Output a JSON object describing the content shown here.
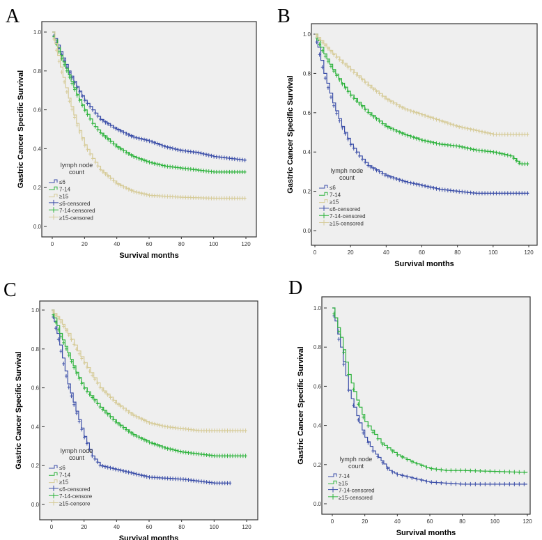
{
  "colors": {
    "blue": "#3b4ea8",
    "green": "#2db33c",
    "tan": "#d6cb98",
    "plot_bg": "#efefef"
  },
  "chart_data": [
    {
      "type": "line",
      "panel_label": "A",
      "xlabel": "Survival months",
      "ylabel": "Gastric Cancer Specific Survival",
      "xlim": [
        0,
        120
      ],
      "ylim": [
        0,
        1
      ],
      "xticks": [
        "0",
        "20",
        "40",
        "60",
        "80",
        "100",
        "120"
      ],
      "yticks": [
        "0.0",
        "0.2",
        "0.4",
        "0.6",
        "0.8",
        "1.0"
      ],
      "legend_title": [
        "lymph node",
        "count"
      ],
      "legend": [
        "≤6",
        "7-14",
        "≥15",
        "≤6-censored",
        "7-14-censored",
        "≥15-censored"
      ],
      "legend_colors": [
        "blue",
        "green",
        "tan",
        "blue",
        "green",
        "tan"
      ],
      "legend_placement": "bottom-left",
      "series": [
        {
          "name": "≤6",
          "color": "blue",
          "x": [
            0,
            5,
            10,
            15,
            20,
            25,
            30,
            40,
            50,
            60,
            70,
            80,
            90,
            100,
            110,
            120
          ],
          "y": [
            1,
            0.9,
            0.8,
            0.72,
            0.65,
            0.6,
            0.55,
            0.5,
            0.46,
            0.44,
            0.41,
            0.39,
            0.38,
            0.36,
            0.35,
            0.34
          ]
        },
        {
          "name": "7-14",
          "color": "green",
          "x": [
            0,
            5,
            10,
            15,
            20,
            25,
            30,
            40,
            50,
            60,
            70,
            80,
            90,
            100,
            120
          ],
          "y": [
            1,
            0.88,
            0.78,
            0.68,
            0.6,
            0.53,
            0.48,
            0.41,
            0.36,
            0.33,
            0.31,
            0.3,
            0.29,
            0.28,
            0.28
          ]
        },
        {
          "name": "≥15",
          "color": "tan",
          "x": [
            0,
            5,
            10,
            15,
            20,
            25,
            30,
            40,
            50,
            60,
            70,
            80,
            100,
            120
          ],
          "y": [
            1,
            0.82,
            0.66,
            0.53,
            0.42,
            0.35,
            0.29,
            0.22,
            0.18,
            0.16,
            0.155,
            0.15,
            0.145,
            0.145
          ]
        }
      ]
    },
    {
      "type": "line",
      "panel_label": "B",
      "xlabel": "Survival months",
      "ylabel": "Gastric Cancer Specific Survival",
      "xlim": [
        0,
        120
      ],
      "ylim": [
        0,
        1
      ],
      "xticks": [
        "0",
        "20",
        "40",
        "60",
        "80",
        "100",
        "120"
      ],
      "yticks": [
        "0.0",
        "0.2",
        "0.4",
        "0.6",
        "0.8",
        "1.0"
      ],
      "legend_title": [
        "lymph node",
        "count"
      ],
      "legend": [
        "≤6",
        "7-14",
        "≥15",
        "≤6-censored",
        "7-14-censored",
        "≥15-censored"
      ],
      "legend_colors": [
        "blue",
        "green",
        "tan",
        "blue",
        "green",
        "tan"
      ],
      "legend_placement": "bottom-left",
      "series": [
        {
          "name": "≤6",
          "color": "blue",
          "x": [
            0,
            5,
            10,
            15,
            20,
            25,
            30,
            40,
            50,
            60,
            70,
            80,
            90,
            120
          ],
          "y": [
            1,
            0.8,
            0.65,
            0.53,
            0.44,
            0.38,
            0.33,
            0.28,
            0.25,
            0.23,
            0.21,
            0.2,
            0.19,
            0.19
          ]
        },
        {
          "name": "7-14",
          "color": "green",
          "x": [
            0,
            5,
            10,
            15,
            20,
            30,
            40,
            50,
            60,
            70,
            80,
            90,
            100,
            110,
            115,
            120
          ],
          "y": [
            1,
            0.9,
            0.82,
            0.75,
            0.69,
            0.6,
            0.53,
            0.49,
            0.46,
            0.44,
            0.43,
            0.41,
            0.4,
            0.38,
            0.34,
            0.34
          ]
        },
        {
          "name": "≥15",
          "color": "tan",
          "x": [
            0,
            5,
            10,
            20,
            30,
            40,
            50,
            60,
            70,
            80,
            90,
            100,
            120
          ],
          "y": [
            1,
            0.95,
            0.9,
            0.82,
            0.74,
            0.67,
            0.62,
            0.59,
            0.56,
            0.53,
            0.51,
            0.49,
            0.49
          ]
        }
      ]
    },
    {
      "type": "line",
      "panel_label": "C",
      "xlabel": "Survival months",
      "ylabel": "Gastric Cancer Specific Survival",
      "xlim": [
        0,
        120
      ],
      "ylim": [
        0,
        1
      ],
      "xticks": [
        "0",
        "20",
        "40",
        "60",
        "80",
        "100",
        "120"
      ],
      "yticks": [
        "0.0",
        "0.2",
        "0.4",
        "0.6",
        "0.8",
        "1.0"
      ],
      "legend_title": [
        "lymph node",
        "count"
      ],
      "legend": [
        "≤6",
        "7-14",
        "≥15",
        "≤6-censored",
        "7-14-censore",
        "≥15-censore"
      ],
      "legend_colors": [
        "blue",
        "green",
        "tan",
        "blue",
        "green",
        "tan"
      ],
      "legend_placement": "bottom-left",
      "series": [
        {
          "name": "≤6",
          "color": "blue",
          "x": [
            0,
            5,
            10,
            15,
            20,
            25,
            30,
            40,
            50,
            60,
            80,
            100,
            110
          ],
          "y": [
            1,
            0.82,
            0.62,
            0.48,
            0.35,
            0.25,
            0.2,
            0.18,
            0.16,
            0.14,
            0.13,
            0.11,
            0.11
          ]
        },
        {
          "name": "7-14",
          "color": "green",
          "x": [
            0,
            5,
            10,
            15,
            20,
            30,
            40,
            50,
            60,
            70,
            80,
            90,
            100,
            120
          ],
          "y": [
            1,
            0.88,
            0.78,
            0.68,
            0.6,
            0.5,
            0.42,
            0.36,
            0.32,
            0.29,
            0.27,
            0.26,
            0.25,
            0.25
          ]
        },
        {
          "name": "≥15",
          "color": "tan",
          "x": [
            0,
            5,
            10,
            20,
            30,
            40,
            50,
            60,
            70,
            80,
            90,
            120
          ],
          "y": [
            1,
            0.95,
            0.88,
            0.73,
            0.6,
            0.52,
            0.46,
            0.42,
            0.4,
            0.39,
            0.38,
            0.38
          ]
        }
      ]
    },
    {
      "type": "line",
      "panel_label": "D",
      "xlabel": "Survival months",
      "ylabel": "Gastric Cancer Specific Survival",
      "xlim": [
        0,
        120
      ],
      "ylim": [
        0,
        1
      ],
      "xticks": [
        "0",
        "20",
        "40",
        "60",
        "80",
        "100",
        "120"
      ],
      "yticks": [
        "0.0",
        "0.2",
        "0.4",
        "0.6",
        "0.8",
        "1.0"
      ],
      "legend_title": [
        "lymph node",
        "count"
      ],
      "legend": [
        "7-14",
        "≥15",
        "7-14-censored",
        "≥15-censored"
      ],
      "legend_colors": [
        "blue",
        "green",
        "blue",
        "green"
      ],
      "legend_placement": "bottom-left",
      "series": [
        {
          "name": "7-14",
          "color": "blue",
          "x": [
            0,
            5,
            10,
            15,
            20,
            25,
            30,
            35,
            40,
            50,
            60,
            80,
            120
          ],
          "y": [
            1,
            0.8,
            0.58,
            0.45,
            0.34,
            0.27,
            0.22,
            0.17,
            0.15,
            0.13,
            0.11,
            0.1,
            0.1
          ]
        },
        {
          "name": "≥15",
          "color": "green",
          "x": [
            0,
            5,
            10,
            15,
            20,
            30,
            40,
            50,
            60,
            70,
            80,
            120
          ],
          "y": [
            1,
            0.85,
            0.66,
            0.53,
            0.42,
            0.31,
            0.25,
            0.21,
            0.18,
            0.17,
            0.17,
            0.16
          ]
        }
      ]
    }
  ]
}
